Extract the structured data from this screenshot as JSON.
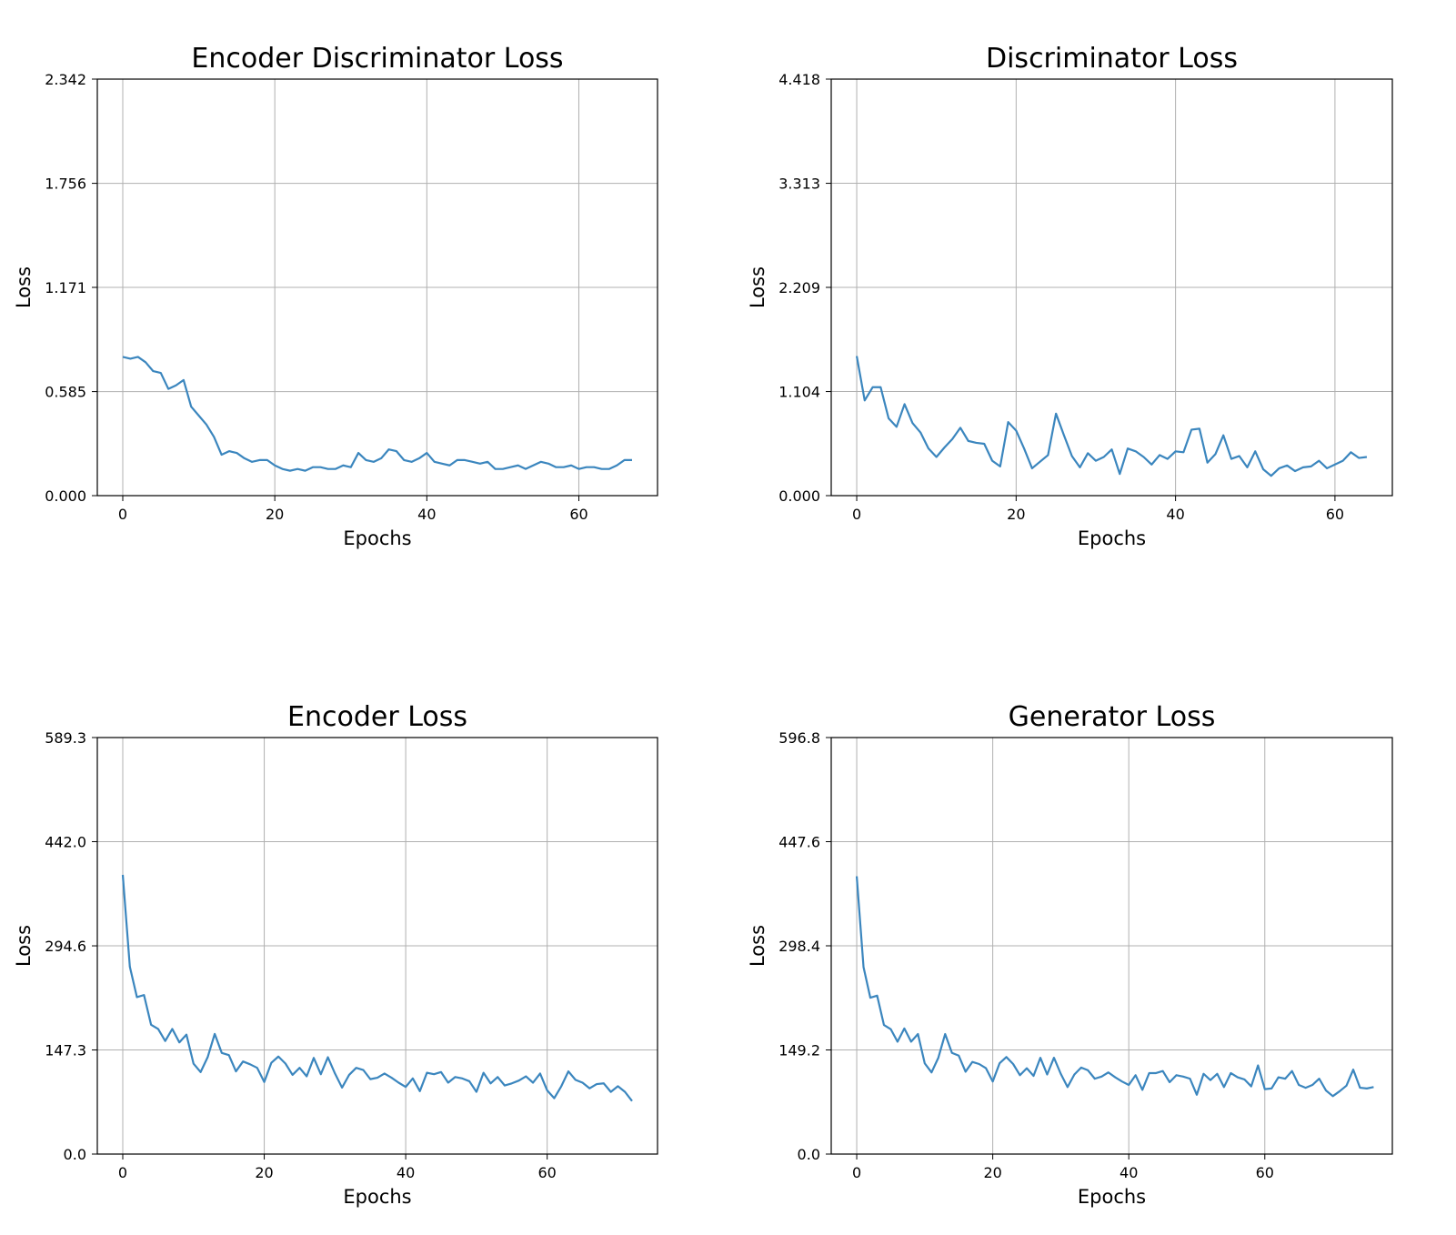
{
  "colors": {
    "line": "#3b86be",
    "grid": "#b0b0b0",
    "axes": "#000000"
  },
  "chart_data": [
    {
      "type": "line",
      "title": "Encoder Discriminator Loss",
      "xlabel": "Epochs",
      "ylabel": "Loss",
      "xlim": [
        -3.35,
        70.35
      ],
      "ylim": [
        0,
        2.342
      ],
      "xticks": [
        0,
        20,
        40,
        60
      ],
      "yticks": [
        0.0,
        0.585,
        1.171,
        1.756,
        2.342
      ],
      "ytick_labels": [
        "0.000",
        "0.585",
        "1.171",
        "1.756",
        "2.342"
      ],
      "grid": true,
      "series": [
        {
          "values": [
            0.78,
            0.77,
            0.78,
            0.75,
            0.7,
            0.69,
            0.6,
            0.62,
            0.65,
            0.5,
            0.45,
            0.4,
            0.33,
            0.23,
            0.25,
            0.24,
            0.21,
            0.19,
            0.2,
            0.2,
            0.17,
            0.15,
            0.14,
            0.15,
            0.14,
            0.16,
            0.16,
            0.15,
            0.15,
            0.17,
            0.16,
            0.24,
            0.2,
            0.19,
            0.21,
            0.26,
            0.25,
            0.2,
            0.19,
            0.21,
            0.24,
            0.19,
            0.18,
            0.17,
            0.2,
            0.2,
            0.19,
            0.18,
            0.19,
            0.15,
            0.15,
            0.16,
            0.17,
            0.15,
            0.17,
            0.19,
            0.18,
            0.16,
            0.16,
            0.17,
            0.15,
            0.16,
            0.16,
            0.15,
            0.15,
            0.17,
            0.2,
            0.2
          ]
        }
      ]
    },
    {
      "type": "line",
      "title": "Discriminator Loss",
      "xlabel": "Epochs",
      "ylabel": "Loss",
      "xlim": [
        -3.2,
        67.2
      ],
      "ylim": [
        0,
        4.418
      ],
      "xticks": [
        0,
        20,
        40,
        60
      ],
      "yticks": [
        0.0,
        1.104,
        2.209,
        3.313,
        4.418
      ],
      "ytick_labels": [
        "0.000",
        "1.104",
        "2.209",
        "3.313",
        "4.418"
      ],
      "grid": true,
      "series": [
        {
          "values": [
            1.48,
            1.01,
            1.15,
            1.15,
            0.82,
            0.73,
            0.97,
            0.77,
            0.67,
            0.5,
            0.41,
            0.51,
            0.6,
            0.72,
            0.58,
            0.56,
            0.55,
            0.37,
            0.31,
            0.78,
            0.69,
            0.5,
            0.29,
            0.36,
            0.43,
            0.87,
            0.64,
            0.42,
            0.3,
            0.45,
            0.37,
            0.41,
            0.49,
            0.23,
            0.5,
            0.47,
            0.41,
            0.33,
            0.43,
            0.39,
            0.47,
            0.46,
            0.7,
            0.71,
            0.35,
            0.44,
            0.64,
            0.39,
            0.42,
            0.3,
            0.47,
            0.28,
            0.21,
            0.29,
            0.32,
            0.26,
            0.3,
            0.31,
            0.37,
            0.29,
            0.33,
            0.37,
            0.46,
            0.4,
            0.41
          ]
        }
      ]
    },
    {
      "type": "line",
      "title": "Encoder Loss",
      "xlabel": "Epochs",
      "ylabel": "Loss",
      "xlim": [
        -3.6,
        75.6
      ],
      "ylim": [
        0,
        589.3
      ],
      "xticks": [
        0,
        20,
        40,
        60
      ],
      "yticks": [
        0.0,
        147.3,
        294.6,
        442.0,
        589.3
      ],
      "ytick_labels": [
        "0.0",
        "147.3",
        "294.6",
        "442.0",
        "589.3"
      ],
      "grid": true,
      "series": [
        {
          "values": [
            395,
            265,
            222,
            225,
            183,
            177,
            160,
            177,
            158,
            169,
            128,
            116,
            137,
            170,
            143,
            140,
            117,
            131,
            127,
            122,
            102,
            129,
            138,
            128,
            112,
            122,
            110,
            136,
            113,
            137,
            114,
            94,
            112,
            122,
            119,
            106,
            108,
            114,
            108,
            101,
            95,
            107,
            89,
            115,
            113,
            116,
            101,
            109,
            107,
            103,
            88,
            115,
            100,
            109,
            97,
            100,
            104,
            110,
            101,
            114,
            90,
            79,
            96,
            117,
            105,
            101,
            93,
            99,
            100,
            88,
            96,
            88,
            75
          ]
        }
      ]
    },
    {
      "type": "line",
      "title": "Generator Loss",
      "xlabel": "Epochs",
      "ylabel": "Loss",
      "xlim": [
        -3.75,
        78.75
      ],
      "ylim": [
        0,
        596.8
      ],
      "xticks": [
        0,
        20,
        40,
        60
      ],
      "yticks": [
        0.0,
        149.2,
        298.4,
        447.6,
        596.8
      ],
      "ytick_labels": [
        "0.0",
        "149.2",
        "298.4",
        "447.6",
        "596.8"
      ],
      "grid": true,
      "series": [
        {
          "values": [
            398,
            268,
            224,
            227,
            185,
            179,
            161,
            180,
            161,
            172,
            130,
            117,
            138,
            172,
            145,
            141,
            118,
            132,
            129,
            123,
            104,
            130,
            139,
            129,
            113,
            123,
            112,
            138,
            114,
            138,
            115,
            96,
            114,
            124,
            120,
            108,
            111,
            117,
            110,
            104,
            99,
            113,
            92,
            116,
            116,
            119,
            103,
            113,
            111,
            108,
            85,
            115,
            106,
            115,
            96,
            116,
            110,
            107,
            97,
            127,
            93,
            94,
            110,
            108,
            119,
            99,
            95,
            99,
            108,
            91,
            83,
            90,
            98,
            121,
            95,
            94,
            96
          ]
        }
      ]
    }
  ]
}
